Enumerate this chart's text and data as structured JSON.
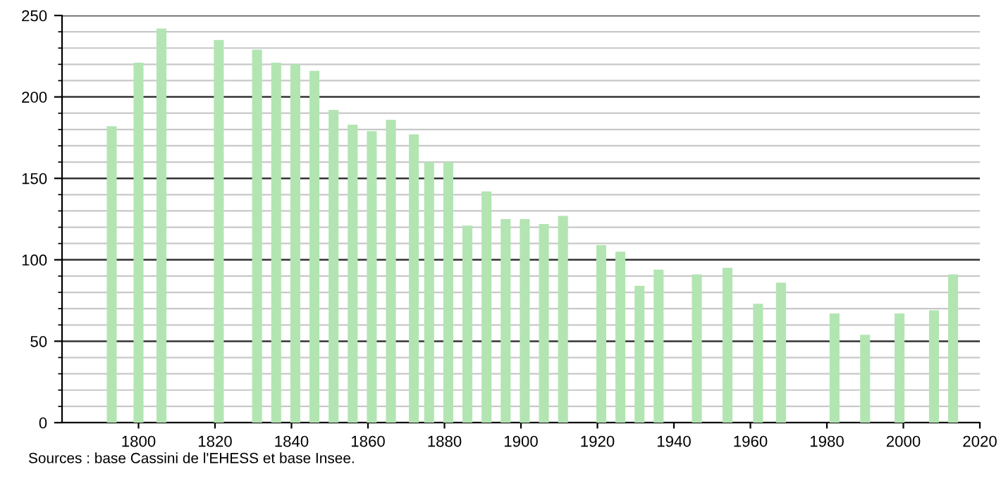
{
  "chart_data": {
    "type": "bar",
    "color": "#b2e5b2",
    "x": [
      1793,
      1800,
      1806,
      1821,
      1831,
      1836,
      1841,
      1846,
      1851,
      1856,
      1861,
      1866,
      1872,
      1876,
      1881,
      1886,
      1891,
      1896,
      1901,
      1906,
      1911,
      1921,
      1926,
      1931,
      1936,
      1946,
      1954,
      1962,
      1968,
      1982,
      1990,
      1999,
      2008,
      2013
    ],
    "values": [
      182,
      221,
      242,
      235,
      229,
      221,
      220,
      216,
      192,
      183,
      179,
      186,
      177,
      160,
      160,
      121,
      142,
      125,
      125,
      122,
      127,
      109,
      105,
      84,
      94,
      91,
      95,
      73,
      86,
      67,
      54,
      67,
      69,
      91
    ],
    "xlim": [
      1780,
      2020
    ],
    "xticks": [
      1800,
      1820,
      1840,
      1860,
      1880,
      1900,
      1920,
      1940,
      1960,
      1980,
      2000,
      2020
    ],
    "ylim": [
      0,
      250
    ],
    "yticks": [
      0,
      50,
      100,
      150,
      200,
      250
    ],
    "grid": "y",
    "annotations": [
      "Sources : base Cassini de l'EHESS et base Insee."
    ]
  }
}
